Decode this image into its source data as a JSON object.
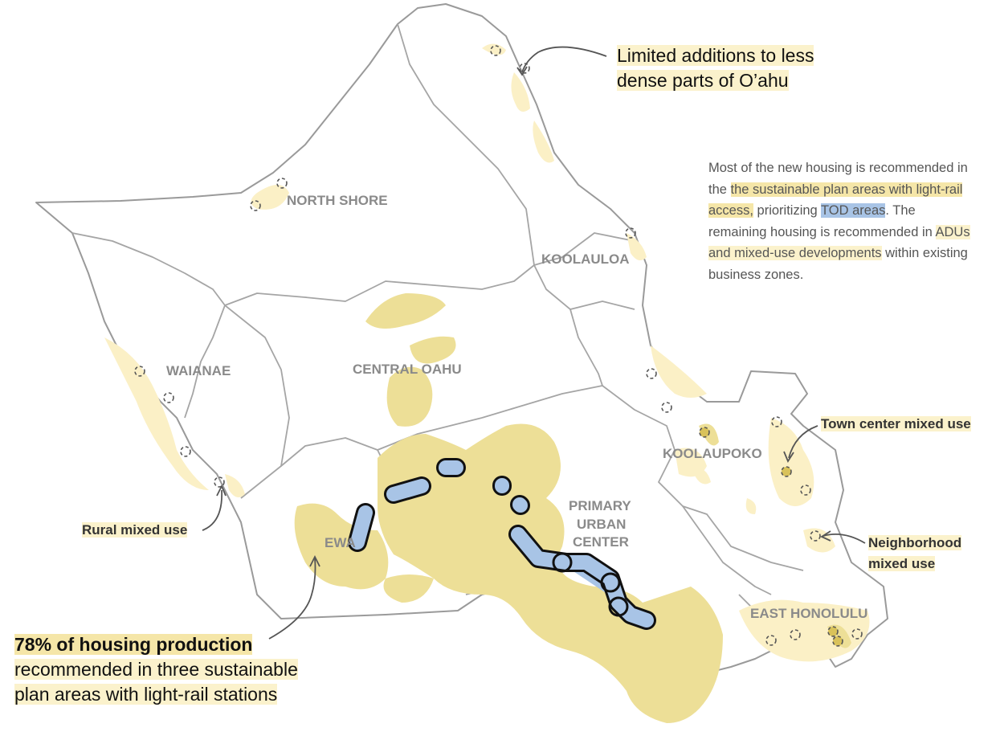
{
  "colors": {
    "land_fill": "#ffffff",
    "boundary": "#9a9a9a",
    "sustainable_area": "#eddf97",
    "less_dense_area": "#fbf0c6",
    "tod_area": "#a8c4e6",
    "tod_outline": "#111111",
    "region_label": "#8a8a8a"
  },
  "regions": {
    "north_shore": "NORTH SHORE",
    "koolauloa": "KOOLAULOA",
    "waianae": "WAIANAE",
    "central_oahu": "CENTRAL OAHU",
    "koolaupoko": "KOOLAUPOKO",
    "primary_urban_center_1": "PRIMARY",
    "primary_urban_center_2": "URBAN",
    "primary_urban_center_3": "CENTER",
    "ewa": "EWA",
    "east_honolulu": "EAST HONOLULU"
  },
  "annotations": {
    "limited_line1": "Limited additions to less",
    "limited_line2": "dense parts of O’ahu",
    "town_center": "Town center mixed use",
    "neighborhood_line1": "Neighborhood",
    "neighborhood_line2": "mixed use",
    "rural": "Rural mixed use",
    "production_bold": "78% of housing production",
    "production_line2": "recommended in three sustainable",
    "production_line3": "plan areas with light-rail stations"
  },
  "explainer": {
    "t1": "Most of the new housing is recommended in the ",
    "hl1": "the sustainable plan areas with light-rail access,",
    "t2": " prioritizing ",
    "hl2": "TOD areas",
    "t3": ". The remaining housing is recommended in ",
    "hl3": "ADUs",
    "t4": " ",
    "hl4": "and mixed-use developments",
    "t5": " within existing business zones."
  }
}
